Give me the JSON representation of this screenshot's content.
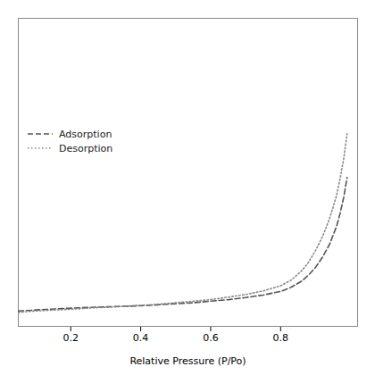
{
  "chart_data": {
    "type": "line",
    "xlabel": "Relative Pressure (P/Po)",
    "x": [
      0.05,
      0.08,
      0.1,
      0.13,
      0.16,
      0.19,
      0.22,
      0.26,
      0.3,
      0.35,
      0.4,
      0.45,
      0.5,
      0.55,
      0.6,
      0.65,
      0.7,
      0.75,
      0.8,
      0.83,
      0.86,
      0.88,
      0.9,
      0.92,
      0.94,
      0.96,
      0.97,
      0.98,
      0.99
    ],
    "series": [
      {
        "name": "Adsorption",
        "color": "#555555",
        "line_style": "dashed",
        "values": [
          30,
          31,
          32,
          33,
          34,
          35,
          36,
          37,
          38,
          39,
          40,
          42,
          44,
          46,
          49,
          52,
          56,
          61,
          68,
          76,
          88,
          100,
          115,
          135,
          160,
          195,
          220,
          250,
          290
        ]
      },
      {
        "name": "Desorption",
        "color": "#888888",
        "line_style": "dotted",
        "values": [
          27,
          29,
          30,
          31,
          32,
          33,
          34,
          36,
          37,
          39,
          41,
          43,
          46,
          49,
          52,
          57,
          62,
          69,
          79,
          90,
          108,
          125,
          148,
          175,
          210,
          255,
          288,
          325,
          375
        ]
      }
    ],
    "xlim": [
      0.05,
      1.02
    ],
    "xticks": [
      0.2,
      0.4,
      0.6,
      0.8
    ],
    "ylim": [
      0,
      600
    ],
    "tick_labels": "x",
    "legend": "left"
  }
}
